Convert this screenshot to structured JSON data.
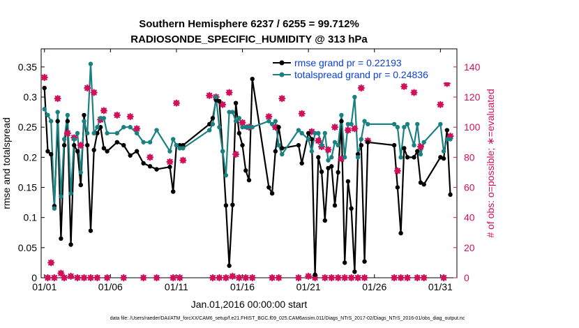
{
  "colors": {
    "rmse": "#000000",
    "spread": "#1a8080",
    "obs": "#d0105a",
    "legend_text": "#0a3fd8"
  },
  "chart_data": {
    "type": "line",
    "title": "Southern Hemisphere 6237 / 6255 = 99.712%",
    "subtitle": "RADIOSONDE_SPECIFIC_HUMIDITY @ 313 hPa",
    "xlabel": "Jan.01,2016 00:00:00 start",
    "ylabel": "rmse and totalspread",
    "ylabel_right": "# of obs: o=possible; ∗=evaluated",
    "footer": "data file: /Users/raeder/DAI/ATM_forcXX/CAM6_setup/f.e21.FHIST_BGC.f09_025.CAM6assim.011/Diags_NTrS_2017-02/Diags_NTrS_2016-01/obs_diag_output.nc",
    "xlim": [
      0.75,
      32.25
    ],
    "ylim": [
      0,
      0.38
    ],
    "ylim_right": [
      0,
      152
    ],
    "x_ticks": [
      1,
      6,
      11,
      16,
      21,
      26,
      31
    ],
    "x_tick_labels": [
      "01/01",
      "01/06",
      "01/11",
      "01/16",
      "01/21",
      "01/26",
      "01/31"
    ],
    "y_ticks": [
      0,
      0.05,
      0.1,
      0.15,
      0.2,
      0.25,
      0.3,
      0.35
    ],
    "y_tick_labels": [
      "0",
      "0.05",
      "0.1",
      "0.15",
      "0.2",
      "0.25",
      "0.3",
      "0.35"
    ],
    "y_right_ticks": [
      0,
      20,
      40,
      60,
      80,
      100,
      120,
      140
    ],
    "y_right_tick_labels": [
      "0",
      "20",
      "40",
      "60",
      "80",
      "100",
      "120",
      "140"
    ],
    "legend": {
      "position": "top-right",
      "entries": [
        "rmse grand pr = 0.22193",
        "totalspread grand pr = 0.24836"
      ]
    },
    "series": [
      {
        "name": "rmse",
        "x": [
          1,
          1.25,
          1.5,
          1.75,
          2,
          2.25,
          2.5,
          2.75,
          3,
          3.25,
          3.5,
          3.75,
          4,
          4.25,
          4.5,
          4.75,
          5,
          5.25,
          5.5,
          5.75,
          6.5,
          7,
          7.5,
          8,
          8.5,
          9,
          9.5,
          10.5,
          10.75,
          11,
          11.25,
          11.5,
          13.5,
          13.75,
          14,
          14.25,
          14.5,
          14.75,
          15,
          15.25,
          15.5,
          15.75,
          16,
          16.25,
          16.5,
          16.75,
          18,
          18.25,
          18.5,
          18.75,
          19,
          20.25,
          20.5,
          21,
          21.25,
          21.5,
          21.75,
          22,
          22.25,
          22.5,
          22.75,
          23,
          23.25,
          23.5,
          23.75,
          24,
          24.25,
          24.5,
          24.75,
          25,
          25.25,
          25.5,
          27.5,
          27.75,
          28,
          28.25,
          28.5,
          29,
          29.25,
          29.5,
          29.75,
          31,
          31.25,
          31.5,
          31.75
        ],
        "y": [
          0.315,
          0.21,
          0.205,
          0.119,
          0.26,
          0.065,
          0.22,
          0.26,
          0.055,
          0.22,
          0.21,
          0.154,
          0.27,
          0.22,
          0.078,
          0.212,
          0.24,
          0.25,
          0.215,
          0.21,
          0.225,
          0.22,
          0.203,
          0.21,
          0.19,
          0.185,
          0.18,
          0.184,
          0.143,
          0.22,
          0.22,
          0.22,
          0.255,
          0.265,
          0.295,
          0.293,
          0.21,
          0.12,
          0.02,
          0.121,
          0.29,
          0.24,
          0.22,
          0.178,
          0.162,
          0.33,
          0.15,
          0.14,
          0.21,
          0.25,
          0.215,
          0.22,
          0.19,
          0.24,
          0.23,
          0.005,
          0.2,
          0.176,
          0.095,
          0.182,
          0.185,
          0.12,
          0.175,
          0.26,
          0.025,
          0.16,
          0.115,
          0.01,
          0.205,
          0.22,
          0.027,
          0.225,
          0.22,
          0.15,
          0.074,
          0.215,
          0.2,
          0.2,
          0.21,
          0.158,
          0.155,
          0.2,
          0.198,
          0.245,
          0.138
        ]
      },
      {
        "name": "totalspread",
        "x": [
          1,
          1.25,
          1.5,
          1.75,
          2,
          2.25,
          2.5,
          2.75,
          3,
          3.25,
          3.5,
          3.75,
          4,
          4.25,
          4.5,
          4.75,
          5,
          5.25,
          5.5,
          5.75,
          6.5,
          7,
          7.5,
          8,
          8.5,
          9,
          9.5,
          10.5,
          10.75,
          11,
          11.25,
          11.5,
          13.5,
          13.75,
          14,
          14.25,
          14.5,
          14.75,
          15,
          15.25,
          15.5,
          15.75,
          16,
          16.25,
          16.5,
          16.75,
          18,
          18.25,
          18.5,
          18.75,
          19,
          20.25,
          20.5,
          21,
          21.25,
          21.5,
          21.75,
          22,
          22.25,
          22.5,
          22.75,
          23,
          23.25,
          23.5,
          23.75,
          24,
          24.25,
          24.5,
          24.75,
          25,
          25.25,
          25.5,
          27.5,
          27.75,
          28,
          28.25,
          28.5,
          29,
          29.25,
          29.5,
          29.75,
          31,
          31.25,
          31.5,
          31.75
        ],
        "y": [
          0.28,
          0.27,
          0.26,
          0.115,
          0.275,
          0.135,
          0.23,
          0.27,
          0.14,
          0.23,
          0.24,
          0.175,
          0.26,
          0.24,
          0.355,
          0.24,
          0.25,
          0.265,
          0.265,
          0.24,
          0.24,
          0.25,
          0.25,
          0.24,
          0.225,
          0.225,
          0.245,
          0.21,
          0.23,
          0.22,
          0.215,
          0.215,
          0.245,
          0.255,
          0.3,
          0.25,
          0.21,
          0.17,
          0.275,
          0.275,
          0.26,
          0.265,
          0.25,
          0.25,
          0.25,
          0.25,
          0.26,
          0.255,
          0.26,
          0.22,
          0.205,
          0.245,
          0.24,
          0.23,
          0.21,
          0.24,
          0.24,
          0.22,
          0.24,
          0.195,
          0.2,
          0.225,
          0.22,
          0.27,
          0.2,
          0.255,
          0.255,
          0.3,
          0.2,
          0.23,
          0.26,
          0.255,
          0.255,
          0.25,
          0.2,
          0.25,
          0.255,
          0.22,
          0.255,
          0.205,
          0.225,
          0.255,
          0.21,
          0.23,
          0.23
        ]
      },
      {
        "name": "obs_possible",
        "axis": "right",
        "x": [
          1,
          1.25,
          1.5,
          1.75,
          2,
          2.25,
          2.5,
          2.75,
          3,
          3.25,
          3.5,
          3.75,
          4,
          4.25,
          4.5,
          4.75,
          5,
          5.25,
          5.5,
          5.75,
          6.5,
          7,
          7.5,
          8,
          8.5,
          9,
          9.5,
          10.5,
          10.75,
          11,
          11.25,
          11.5,
          13.5,
          13.75,
          14,
          14.25,
          14.5,
          14.75,
          15,
          15.25,
          15.5,
          15.75,
          16,
          16.25,
          16.5,
          16.75,
          18,
          18.25,
          18.5,
          18.75,
          19,
          20.25,
          20.5,
          21,
          21.25,
          21.5,
          21.75,
          22,
          22.25,
          22.5,
          22.75,
          23,
          23.25,
          23.5,
          23.75,
          24,
          24.25,
          24.5,
          24.75,
          25,
          25.25,
          25.5,
          27.5,
          27.75,
          28,
          28.25,
          28.5,
          29,
          29.25,
          29.5,
          29.75,
          31,
          31.25,
          31.5,
          31.75
        ],
        "y": [
          133,
          0,
          10,
          0,
          119,
          3,
          0,
          96,
          1,
          93,
          0,
          88,
          0,
          126,
          0,
          123,
          0,
          105,
          111,
          0,
          108,
          0,
          107,
          99,
          0,
          80,
          0,
          77,
          0,
          116,
          0,
          78,
          121,
          0,
          120,
          0,
          115,
          0,
          123,
          1,
          82,
          0,
          103,
          0,
          100,
          0,
          107,
          0,
          100,
          0,
          119,
          0,
          109,
          1,
          97,
          0,
          91,
          87,
          0,
          85,
          0,
          100,
          0,
          79,
          0,
          98,
          0,
          99,
          0,
          126,
          0,
          91,
          0,
          71,
          0,
          127,
          0,
          123,
          0,
          87,
          0,
          115,
          0,
          129,
          94
        ]
      },
      {
        "name": "obs_evaluated",
        "axis": "right",
        "x": [
          1,
          1.25,
          1.5,
          1.75,
          2,
          2.25,
          2.5,
          2.75,
          3,
          3.25,
          3.5,
          3.75,
          4,
          4.25,
          4.5,
          4.75,
          5,
          5.25,
          5.5,
          5.75,
          6.5,
          7,
          7.5,
          8,
          8.5,
          9,
          9.5,
          10.5,
          10.75,
          11,
          11.25,
          11.5,
          13.5,
          13.75,
          14,
          14.25,
          14.5,
          14.75,
          15,
          15.25,
          15.5,
          15.75,
          16,
          16.25,
          16.5,
          16.75,
          18,
          18.25,
          18.5,
          18.75,
          19,
          20.25,
          20.5,
          21,
          21.25,
          21.5,
          21.75,
          22,
          22.25,
          22.5,
          22.75,
          23,
          23.25,
          23.5,
          23.75,
          24,
          24.25,
          24.5,
          24.75,
          25,
          25.25,
          25.5,
          27.5,
          27.75,
          28,
          28.25,
          28.5,
          29,
          29.25,
          29.5,
          29.75,
          31,
          31.25,
          31.5,
          31.75
        ],
        "y": [
          133,
          0,
          10,
          0,
          119,
          3,
          0,
          96,
          1,
          93,
          0,
          88,
          0,
          126,
          0,
          123,
          0,
          105,
          111,
          0,
          108,
          0,
          107,
          99,
          0,
          80,
          0,
          77,
          0,
          116,
          0,
          78,
          121,
          0,
          120,
          0,
          115,
          0,
          123,
          1,
          82,
          0,
          103,
          0,
          100,
          0,
          107,
          0,
          100,
          0,
          119,
          0,
          109,
          1,
          97,
          0,
          91,
          87,
          0,
          85,
          0,
          100,
          0,
          79,
          0,
          98,
          0,
          99,
          0,
          126,
          0,
          91,
          0,
          71,
          0,
          127,
          0,
          123,
          0,
          87,
          0,
          115,
          0,
          129,
          94
        ]
      }
    ]
  }
}
